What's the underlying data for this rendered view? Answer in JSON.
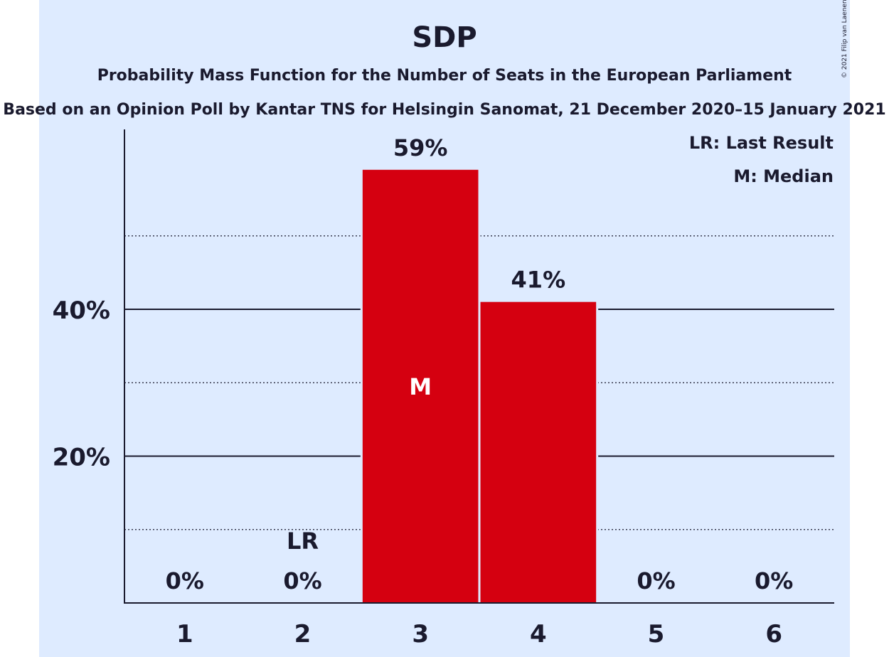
{
  "chart_data": {
    "type": "bar",
    "title": "SDP",
    "subtitle": "Probability Mass Function for the Number of Seats in the European Parliament",
    "subtitle2": "Based on an Opinion Poll by Kantar TNS for Helsingin Sanomat, 21 December 2020–15 January 2021",
    "copyright": "© 2021 Filip van Laenen",
    "categories": [
      "1",
      "2",
      "3",
      "4",
      "5",
      "6"
    ],
    "values": [
      0,
      0,
      59,
      41,
      0,
      0
    ],
    "value_labels": [
      "0%",
      "0%",
      "59%",
      "41%",
      "0%",
      "0%"
    ],
    "ylim": [
      0,
      64.5
    ],
    "y_ticks": [
      {
        "value": 20,
        "label": "20%"
      },
      {
        "value": 40,
        "label": "40%"
      }
    ],
    "minor_gridlines": [
      10,
      30,
      50
    ],
    "legend": [
      "LR: Last Result",
      "M: Median"
    ],
    "legend_position": "top-right",
    "last_result": {
      "category": "2",
      "label": "LR"
    },
    "median": {
      "category": "3",
      "label": "M"
    },
    "colors": {
      "bar": "#d50010",
      "background": "#deebff",
      "text": "#1a1a2e",
      "median_text": "#ffffff"
    }
  }
}
